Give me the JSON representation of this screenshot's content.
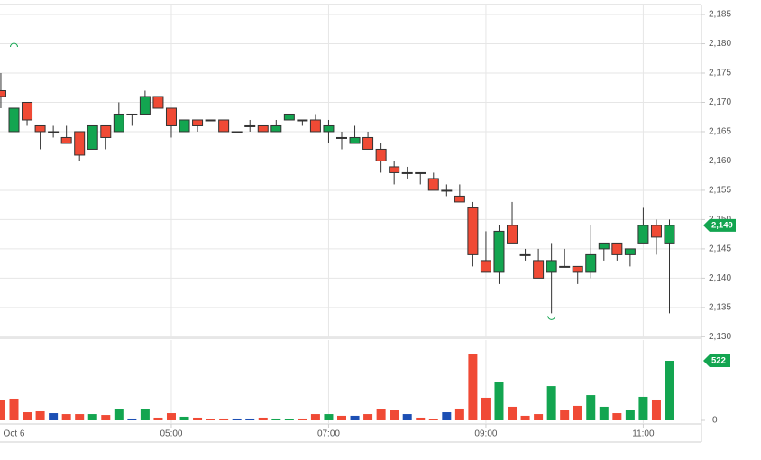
{
  "chart_data": [
    {
      "type": "candlestick",
      "categories": [
        null,
        "Oct 6",
        null,
        null,
        null,
        null,
        null,
        null,
        null,
        null,
        null,
        null,
        null,
        "05:00",
        null,
        null,
        null,
        null,
        null,
        null,
        null,
        null,
        null,
        null,
        null,
        "07:00",
        null,
        null,
        null,
        null,
        null,
        null,
        null,
        null,
        null,
        null,
        null,
        "09:00",
        null,
        null,
        null,
        null,
        null,
        null,
        null,
        null,
        null,
        null,
        null,
        "11:00",
        null,
        null
      ],
      "open": [
        2172,
        2165,
        2170,
        2166,
        2165,
        2164,
        2165,
        2162,
        2166,
        2165,
        2168,
        2168,
        2171,
        2169,
        2165,
        2167,
        2167,
        2167,
        2165,
        2166,
        2166,
        2165,
        2167,
        2167,
        2167,
        2165,
        2164,
        2163,
        2164,
        2162,
        2159,
        2158,
        2158,
        2157,
        2155,
        2154,
        2152,
        2143,
        2141,
        2149,
        2144,
        2143,
        2141,
        2142,
        2142,
        2141,
        2145,
        2146,
        2144,
        2146,
        2149,
        2146
      ],
      "high": [
        2175,
        2179,
        2170,
        2166,
        2166,
        2166,
        2165,
        2166,
        2166,
        2170,
        2168,
        2172,
        2171,
        2169,
        2167,
        2167,
        2167,
        2167,
        2165,
        2167,
        2166,
        2167,
        2168,
        2167,
        2168,
        2167,
        2165,
        2166,
        2165,
        2163,
        2160,
        2159,
        2158,
        2158,
        2156,
        2156,
        2153,
        2148,
        2149,
        2153,
        2145,
        2145,
        2146,
        2145,
        2142,
        2149,
        2146,
        2146,
        2145,
        2152,
        2150,
        2150
      ],
      "low": [
        2169,
        2165,
        2166,
        2162,
        2164,
        2163,
        2160,
        2162,
        2162,
        2165,
        2166,
        2168,
        2169,
        2164,
        2165,
        2165,
        2167,
        2165,
        2165,
        2165,
        2165,
        2165,
        2167,
        2166,
        2165,
        2163,
        2162,
        2163,
        2162,
        2158,
        2156,
        2157,
        2156,
        2155,
        2154,
        2153,
        2142,
        2141,
        2139,
        2146,
        2143,
        2140,
        2134,
        2142,
        2139,
        2140,
        2143,
        2143,
        2142,
        2146,
        2144,
        2134
      ],
      "close": [
        2171,
        2169,
        2167,
        2165,
        2165,
        2163,
        2161,
        2166,
        2164,
        2168,
        2168,
        2171,
        2169,
        2166,
        2167,
        2166,
        2167,
        2165,
        2165,
        2166,
        2165,
        2166,
        2168,
        2167,
        2165,
        2166,
        2164,
        2164,
        2162,
        2160,
        2158,
        2158,
        2158,
        2155,
        2155,
        2153,
        2144,
        2141,
        2148,
        2146,
        2144,
        2140,
        2143,
        2142,
        2141,
        2144,
        2146,
        2144,
        2145,
        2149,
        2147,
        2149
      ],
      "up_color": "#13a550",
      "down_color": "#f04a35",
      "outline_color": "#333333",
      "ylim": [
        2129.9,
        2186.7
      ],
      "yticks": [
        {
          "value": 2130,
          "label": "2,130"
        },
        {
          "value": 2135,
          "label": "2,135"
        },
        {
          "value": 2140,
          "label": "2,140"
        },
        {
          "value": 2145,
          "label": "2,145"
        },
        {
          "value": 2150,
          "label": "2,150"
        },
        {
          "value": 2155,
          "label": "2,155"
        },
        {
          "value": 2160,
          "label": "2,160"
        },
        {
          "value": 2165,
          "label": "2,165"
        },
        {
          "value": 2170,
          "label": "2,170"
        },
        {
          "value": 2175,
          "label": "2,175"
        },
        {
          "value": 2180,
          "label": "2,180"
        },
        {
          "value": 2185,
          "label": "2,185"
        }
      ],
      "last_price": {
        "value": 2149,
        "label": "2,149"
      },
      "grid": true
    },
    {
      "type": "bar",
      "values": [
        174,
        190,
        71,
        79,
        63,
        55,
        55,
        55,
        47,
        95,
        16,
        95,
        24,
        63,
        32,
        24,
        8,
        16,
        16,
        16,
        24,
        16,
        8,
        16,
        55,
        55,
        40,
        40,
        55,
        95,
        87,
        55,
        24,
        8,
        71,
        103,
        585,
        198,
        340,
        119,
        40,
        55,
        300,
        87,
        127,
        221,
        119,
        63,
        87,
        206,
        182,
        522
      ],
      "colors": [
        "#f04a35",
        "#f04a35",
        "#f04a35",
        "#f04a35",
        "#1c4fb4",
        "#f04a35",
        "#f04a35",
        "#13a550",
        "#f04a35",
        "#13a550",
        "#1c4fb4",
        "#13a550",
        "#f04a35",
        "#f04a35",
        "#13a550",
        "#f04a35",
        "#f04a35",
        "#f04a35",
        "#1c4fb4",
        "#1c4fb4",
        "#f04a35",
        "#13a550",
        "#13a550",
        "#f04a35",
        "#f04a35",
        "#13a550",
        "#f04a35",
        "#1c4fb4",
        "#f04a35",
        "#f04a35",
        "#f04a35",
        "#1c4fb4",
        "#f04a35",
        "#f04a35",
        "#1c4fb4",
        "#f04a35",
        "#f04a35",
        "#f04a35",
        "#13a550",
        "#f04a35",
        "#f04a35",
        "#f04a35",
        "#13a550",
        "#f04a35",
        "#f04a35",
        "#13a550",
        "#13a550",
        "#f04a35",
        "#13a550",
        "#13a550",
        "#f04a35",
        "#13a550"
      ],
      "ylim": [
        0,
        704
      ],
      "yticks": [
        0
      ]
    }
  ]
}
